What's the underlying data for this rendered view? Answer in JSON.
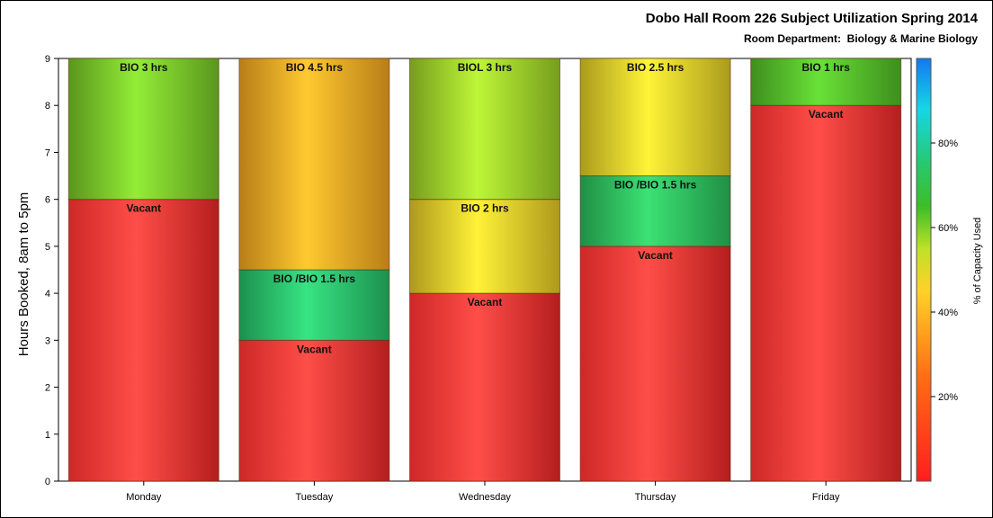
{
  "chart_data": {
    "type": "bar",
    "stacked": true,
    "title": "Dobo Hall Room 226 Subject Utilization Spring 2014",
    "subtitle": "Room Department:  Biology & Marine Biology",
    "ylabel": "Hours Booked, 8am to 5pm",
    "xlabel": "",
    "ylim": [
      0,
      9
    ],
    "yticks": [
      "0",
      "1",
      "2",
      "3",
      "4",
      "5",
      "6",
      "7",
      "8",
      "9"
    ],
    "categories": [
      "Monday",
      "Tuesday",
      "Wednesday",
      "Thursday",
      "Friday"
    ],
    "bars": [
      {
        "category": "Monday",
        "segments": [
          {
            "label": "Vacant",
            "hours": 6,
            "pct_capacity": 0
          },
          {
            "label": "BIO 3 hrs",
            "hours": 3,
            "pct_capacity": 60
          }
        ]
      },
      {
        "category": "Tuesday",
        "segments": [
          {
            "label": "Vacant",
            "hours": 3,
            "pct_capacity": 0
          },
          {
            "label": "BIO /BIO 1.5 hrs",
            "hours": 1.5,
            "pct_capacity": 75
          },
          {
            "label": "BIO 4.5 hrs",
            "hours": 4.5,
            "pct_capacity": 38
          }
        ]
      },
      {
        "category": "Wednesday",
        "segments": [
          {
            "label": "Vacant",
            "hours": 4,
            "pct_capacity": 0
          },
          {
            "label": "BIO 2 hrs",
            "hours": 2,
            "pct_capacity": 47
          },
          {
            "label": "BIOL 3 hrs",
            "hours": 3,
            "pct_capacity": 57
          }
        ]
      },
      {
        "category": "Thursday",
        "segments": [
          {
            "label": "Vacant",
            "hours": 5,
            "pct_capacity": 0
          },
          {
            "label": "BIO /BIO 1.5 hrs",
            "hours": 1.5,
            "pct_capacity": 73
          },
          {
            "label": "BIO 2.5 hrs",
            "hours": 2.5,
            "pct_capacity": 48
          }
        ]
      },
      {
        "category": "Friday",
        "segments": [
          {
            "label": "Vacant",
            "hours": 8,
            "pct_capacity": 0
          },
          {
            "label": "BIO 1 hrs",
            "hours": 1,
            "pct_capacity": 63
          }
        ]
      }
    ],
    "legend": {
      "type": "color-gradient",
      "label": "% of Capacity Used",
      "range": [
        0,
        100
      ],
      "ticks": [
        "20%",
        "40%",
        "60%",
        "80%"
      ],
      "tick_values": [
        20,
        40,
        60,
        80
      ],
      "placement": "right"
    },
    "grid": false
  }
}
